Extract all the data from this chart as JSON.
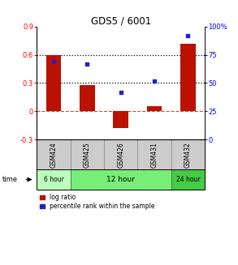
{
  "title": "GDS5 / 6001",
  "samples": [
    "GSM424",
    "GSM425",
    "GSM426",
    "GSM431",
    "GSM432"
  ],
  "log_ratio": [
    0.6,
    0.28,
    -0.18,
    0.05,
    0.72
  ],
  "percentile_rank": [
    69,
    67,
    42,
    52,
    92
  ],
  "bar_color": "#bb1100",
  "dot_color": "#2222cc",
  "ylim_left": [
    -0.3,
    0.9
  ],
  "ylim_right": [
    0,
    100
  ],
  "yticks_left": [
    -0.3,
    0.0,
    0.3,
    0.6,
    0.9
  ],
  "ytick_labels_left": [
    "-0.3",
    "0",
    "0.3",
    "0.6",
    "0.9"
  ],
  "yticks_right": [
    0,
    25,
    50,
    75,
    100
  ],
  "ytick_labels_right": [
    "0",
    "25",
    "50",
    "75",
    "100%"
  ],
  "hline_dotted": [
    0.3,
    0.6
  ],
  "hline_dashed_color": "#cc2200",
  "time_groups": [
    {
      "label": "6 hour",
      "samples": [
        "GSM424"
      ],
      "color": "#bbffbb"
    },
    {
      "label": "12 hour",
      "samples": [
        "GSM425",
        "GSM426",
        "GSM431"
      ],
      "color": "#77ee77"
    },
    {
      "label": "24 hour",
      "samples": [
        "GSM432"
      ],
      "color": "#44cc44"
    }
  ],
  "sample_box_color": "#cccccc",
  "legend_log_ratio": "log ratio",
  "legend_percentile": "percentile rank within the sample",
  "bar_width": 0.45,
  "time_label": "time"
}
